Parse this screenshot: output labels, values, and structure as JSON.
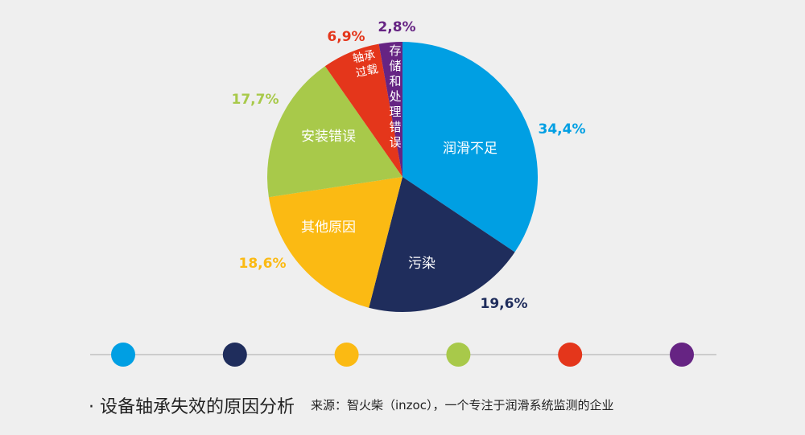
{
  "chart_data": {
    "type": "pie",
    "start": "top",
    "direction": "clockwise",
    "slices": [
      {
        "label": "润滑不足",
        "value": 34.4,
        "value_label": "34,4%",
        "color": "#009fe3"
      },
      {
        "label": "污染",
        "value": 19.6,
        "value_label": "19,6%",
        "color": "#1f2d5c"
      },
      {
        "label": "其他原因",
        "value": 18.6,
        "value_label": "18,6%",
        "color": "#fbba13"
      },
      {
        "label": "安装错误",
        "value": 17.7,
        "value_label": "17,7%",
        "color": "#a8c94a"
      },
      {
        "label": "轴承过载",
        "value": 6.9,
        "value_label": "6,9%",
        "color": "#e4361b"
      },
      {
        "label": "存储和处理错误",
        "value": 2.8,
        "value_label": "2,8%",
        "color": "#662483"
      }
    ],
    "legend_placement": "bottom"
  },
  "caption": "· 设备轴承失效的原因分析",
  "source": "来源：智火柴（inzoc），一个专注于润滑系统监测的企业"
}
